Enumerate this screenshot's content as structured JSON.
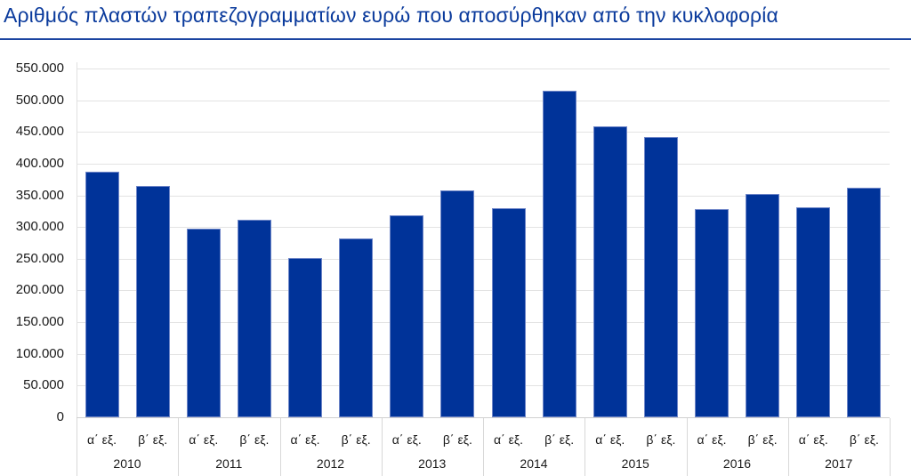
{
  "header": {
    "title": "Αριθμός πλαστών τραπεζογραμματίων ευρώ που αποσύρθηκαν από την κυκλοφορία"
  },
  "colors": {
    "bar": "#003399",
    "title": "#0a3a9c",
    "rule": "#1b44a0",
    "grid": "#e3e3e3"
  },
  "yaxis": {
    "ticks": [
      "0",
      "50.000",
      "100.000",
      "150.000",
      "200.000",
      "250.000",
      "300.000",
      "350.000",
      "400.000",
      "450.000",
      "500.000",
      "550.000"
    ]
  },
  "xaxis": {
    "years": [
      "2010",
      "2011",
      "2012",
      "2013",
      "2014",
      "2015",
      "2016",
      "2017"
    ],
    "halves": [
      "α΄ εξ.",
      "β΄ εξ."
    ]
  },
  "chart_data": {
    "type": "bar",
    "title": "Αριθμός πλαστών τραπεζογραμματίων ευρώ που αποσύρθηκαν από την κυκλοφορία",
    "xlabel": "",
    "ylabel": "",
    "ylim": [
      0,
      550000
    ],
    "grid": true,
    "legend": "none",
    "categories": [
      "2010 α΄ εξ.",
      "2010 β΄ εξ.",
      "2011 α΄ εξ.",
      "2011 β΄ εξ.",
      "2012 α΄ εξ.",
      "2012 β΄ εξ.",
      "2013 α΄ εξ.",
      "2013 β΄ εξ.",
      "2014 α΄ εξ.",
      "2014 β΄ εξ.",
      "2015 α΄ εξ.",
      "2015 β΄ εξ.",
      "2016 α΄ εξ.",
      "2016 β΄ εξ.",
      "2017 α΄ εξ.",
      "2017 β΄ εξ."
    ],
    "values": [
      387000,
      365000,
      297000,
      311000,
      251000,
      282000,
      318000,
      358000,
      330000,
      515000,
      459000,
      442000,
      328000,
      352000,
      331000,
      362000
    ]
  }
}
